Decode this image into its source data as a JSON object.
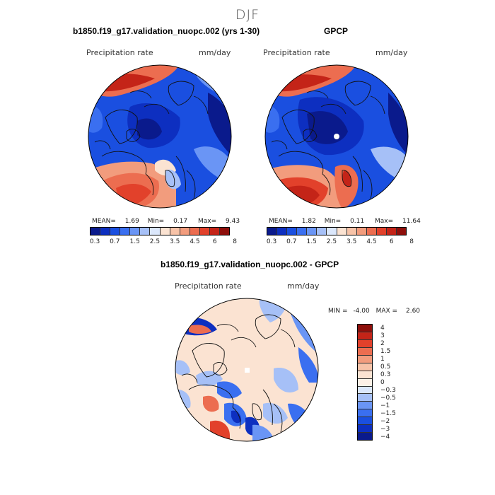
{
  "season": "DJF",
  "panels": {
    "model": {
      "title": "b1850.f19_g17.validation_nuopc.002 (yrs 1-30)",
      "variable": "Precipitation rate",
      "units": "mm/day",
      "mean_label": "MEAN=",
      "mean": "1.69",
      "min_label": "Min=",
      "min": "0.17",
      "max_label": "Max=",
      "max": "9.43"
    },
    "obs": {
      "title": "GPCP",
      "variable": "Precipitation rate",
      "units": "mm/day",
      "mean_label": "MEAN=",
      "mean": "1.82",
      "min_label": "Min=",
      "min": "0.11",
      "max_label": "Max=",
      "max": "11.64"
    },
    "diff": {
      "title": "b1850.f19_g17.validation_nuopc.002 - GPCP",
      "variable": "Precipitation rate",
      "units": "mm/day",
      "min_label": "MIN =",
      "min": "-4.00",
      "max_label": "MAX =",
      "max": "2.60"
    }
  },
  "colorbar_precip": {
    "ticks": [
      "0.3",
      "0.7",
      "1.5",
      "2.5",
      "3.5",
      "4.5",
      "6",
      "8"
    ],
    "colors": [
      "#0a1a8c",
      "#0d2fc0",
      "#1a4fe0",
      "#3a6ff0",
      "#6a95f5",
      "#a6c0f7",
      "#dbe7fb",
      "#fbe3d2",
      "#f7c3a8",
      "#f29c7d",
      "#ec6d50",
      "#e2412b",
      "#c42418",
      "#8e0f0b"
    ]
  },
  "colorbar_diff": {
    "ticks": [
      "4",
      "3",
      "2",
      "1.5",
      "1",
      "0.5",
      "0.3",
      "0",
      "−0.3",
      "−0.5",
      "−1",
      "−1.5",
      "−2",
      "−3",
      "−4"
    ],
    "colors": [
      "#8e0f0b",
      "#c42418",
      "#e2412b",
      "#ec6d50",
      "#f29c7d",
      "#f7c3a8",
      "#fbe3d2",
      "#fdf0e6",
      "#dbe7fb",
      "#a6c0f7",
      "#6a95f5",
      "#3a6ff0",
      "#1a4fe0",
      "#0d2fc0",
      "#0a1a8c"
    ]
  },
  "map_colors": {
    "deep_blue": "#0a1a8c",
    "blue": "#1a4fe0",
    "mid_blue": "#3a6ff0",
    "light_blue": "#a6c0f7",
    "pale": "#fbe3d2",
    "orange": "#ec6d50",
    "red": "#e2412b",
    "dark_red": "#c42418"
  }
}
